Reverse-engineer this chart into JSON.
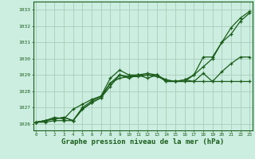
{
  "bg_color": "#cceee0",
  "grid_color": "#aaccbb",
  "line_color": "#1a5c1a",
  "marker_color": "#1a5c1a",
  "xlabel": "Graphe pression niveau de la mer (hPa)",
  "xlabel_fontsize": 6.5,
  "ylabel_ticks": [
    1026,
    1027,
    1028,
    1029,
    1030,
    1031,
    1032,
    1033
  ],
  "xlim": [
    -0.3,
    23.3
  ],
  "ylim": [
    1025.6,
    1033.5
  ],
  "xticks": [
    0,
    1,
    2,
    3,
    4,
    5,
    6,
    7,
    8,
    9,
    10,
    11,
    12,
    13,
    14,
    15,
    16,
    17,
    18,
    19,
    20,
    21,
    22,
    23
  ],
  "series": [
    [
      1026.1,
      1026.2,
      1026.3,
      1026.4,
      1026.2,
      1026.9,
      1027.3,
      1027.6,
      1028.3,
      1029.0,
      1028.8,
      1029.0,
      1029.1,
      1029.0,
      1028.6,
      1028.6,
      1028.6,
      1028.6,
      1028.6,
      1028.6,
      1028.6,
      1028.6,
      1028.6,
      1028.6
    ],
    [
      1026.1,
      1026.2,
      1026.3,
      1026.4,
      1026.2,
      1026.9,
      1027.3,
      1027.6,
      1028.5,
      1029.0,
      1028.9,
      1028.9,
      1029.0,
      1029.0,
      1028.7,
      1028.6,
      1028.7,
      1028.6,
      1029.1,
      1028.6,
      1029.2,
      1029.7,
      1030.1,
      1030.1
    ],
    [
      1026.1,
      1026.2,
      1026.4,
      1026.3,
      1026.9,
      1027.2,
      1027.5,
      1027.7,
      1028.8,
      1029.3,
      1029.0,
      1029.0,
      1028.8,
      1029.0,
      1028.6,
      1028.6,
      1028.6,
      1029.0,
      1029.5,
      1030.0,
      1031.0,
      1031.5,
      1032.3,
      1032.8
    ],
    [
      1026.1,
      1026.1,
      1026.2,
      1026.2,
      1026.2,
      1027.0,
      1027.4,
      1027.7,
      1028.5,
      1028.8,
      1028.9,
      1029.0,
      1029.0,
      1028.9,
      1028.7,
      1028.6,
      1028.7,
      1029.0,
      1030.1,
      1030.1,
      1031.0,
      1031.9,
      1032.5,
      1032.9
    ]
  ]
}
